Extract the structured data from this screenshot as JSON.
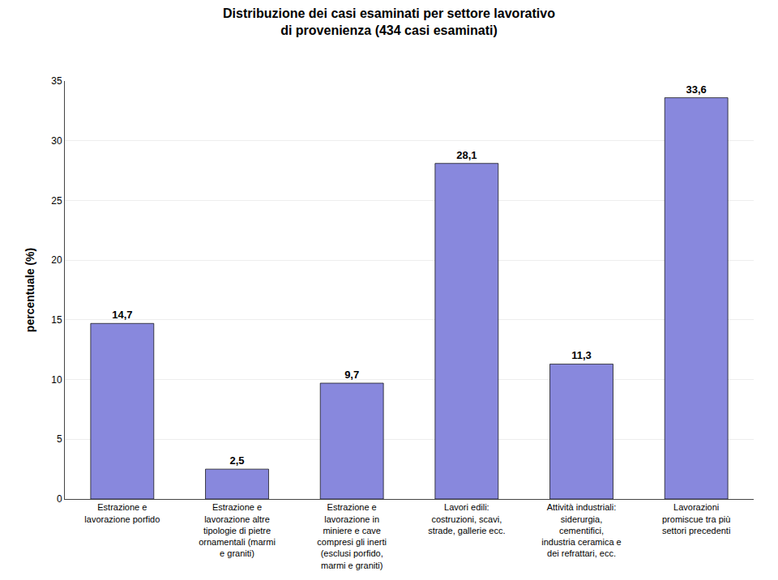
{
  "chart_data": {
    "type": "bar",
    "title": "Distribuzione dei casi esaminati per settore lavorativo\ndi provenienza (434 casi esaminati)",
    "ylabel": "percentuale (%)",
    "categories": [
      "Estrazione e\nlavorazione porfido",
      "Estrazione e\nlavorazione altre\ntipologie di pietre\nornamentali (marmi\ne graniti)",
      "Estrazione e\nlavorazione in\nminiere e cave\ncompresi gli inerti\n(esclusi porfido,\nmarmi e graniti)",
      "Lavori edili:\ncostruzioni, scavi,\nstrade, gallerie ecc.",
      "Attività industriali:\nsiderurgia,\ncementifici,\nindustria ceramica e\ndei refrattari, ecc.",
      "Lavorazioni\npromiscue tra più\nsettori precedenti"
    ],
    "values": [
      14.7,
      2.5,
      9.7,
      28.1,
      11.3,
      33.6
    ],
    "value_labels": [
      "14,7",
      "2,5",
      "9,7",
      "28,1",
      "11,3",
      "33,6"
    ],
    "data_labels": true,
    "color": "#8888dd",
    "ylim": [
      0,
      35
    ],
    "yticks": [
      0,
      5,
      10,
      15,
      20,
      25,
      30,
      35
    ],
    "grid": true
  }
}
